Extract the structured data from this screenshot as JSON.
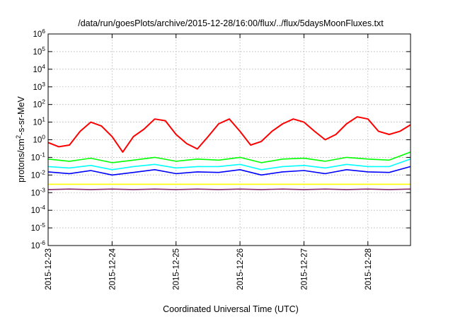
{
  "chart_data": {
    "type": "line",
    "title": "/data/run/goesPlots/archive/2015-12-28/16:00/flux/../flux/5daysMoonFluxes.txt",
    "xlabel": "Coordinated Universal Time (UTC)",
    "ylabel": {
      "pre": "protons/cm",
      "sup": "2",
      "post": "-s-sr-MeV"
    },
    "y_scale": "log",
    "ylim": [
      1e-06,
      1000000.0
    ],
    "y_ticks": [
      {
        "value": 1000000.0,
        "base": "10",
        "exp": "6"
      },
      {
        "value": 100000.0,
        "base": "10",
        "exp": "5"
      },
      {
        "value": 10000.0,
        "base": "10",
        "exp": "4"
      },
      {
        "value": 1000.0,
        "base": "10",
        "exp": "3"
      },
      {
        "value": 100.0,
        "base": "10",
        "exp": "2"
      },
      {
        "value": 10.0,
        "base": "10",
        "exp": "1"
      },
      {
        "value": 1.0,
        "base": "10",
        "exp": "0"
      },
      {
        "value": 0.1,
        "base": "10",
        "exp": "-1"
      },
      {
        "value": 0.01,
        "base": "10",
        "exp": "-2"
      },
      {
        "value": 0.001,
        "base": "10",
        "exp": "-3"
      },
      {
        "value": 0.0001,
        "base": "10",
        "exp": "-4"
      },
      {
        "value": 1e-05,
        "base": "10",
        "exp": "-5"
      },
      {
        "value": 1e-06,
        "base": "10",
        "exp": "-6"
      }
    ],
    "xlim": [
      "2015-12-23T00:00",
      "2015-12-28T16:00"
    ],
    "x_ticks": [
      "2015-12-23",
      "2015-12-24",
      "2015-12-25",
      "2015-12-26",
      "2015-12-27",
      "2015-12-28"
    ],
    "grid": true,
    "series": [
      {
        "color": "#ff0000",
        "x": [
          "2015-12-23T00:00",
          "2015-12-23T04:00",
          "2015-12-23T08:00",
          "2015-12-23T12:00",
          "2015-12-23T16:00",
          "2015-12-23T20:00",
          "2015-12-24T00:00",
          "2015-12-24T04:00",
          "2015-12-24T08:00",
          "2015-12-24T12:00",
          "2015-12-24T16:00",
          "2015-12-24T20:00",
          "2015-12-25T00:00",
          "2015-12-25T04:00",
          "2015-12-25T08:00",
          "2015-12-25T12:00",
          "2015-12-25T16:00",
          "2015-12-25T20:00",
          "2015-12-26T00:00",
          "2015-12-26T04:00",
          "2015-12-26T08:00",
          "2015-12-26T12:00",
          "2015-12-26T16:00",
          "2015-12-26T20:00",
          "2015-12-27T00:00",
          "2015-12-27T04:00",
          "2015-12-27T08:00",
          "2015-12-27T12:00",
          "2015-12-27T16:00",
          "2015-12-27T20:00",
          "2015-12-28T00:00",
          "2015-12-28T04:00",
          "2015-12-28T08:00",
          "2015-12-28T12:00",
          "2015-12-28T16:00"
        ],
        "values": [
          0.7,
          0.4,
          0.5,
          3,
          10,
          6,
          1.5,
          0.2,
          1.5,
          4,
          15,
          12,
          2,
          0.6,
          0.3,
          1.5,
          8,
          15,
          3,
          0.5,
          0.8,
          3,
          8,
          15,
          10,
          3,
          1,
          2,
          8,
          20,
          15,
          3,
          2,
          3,
          7
        ]
      },
      {
        "color": "#00ff00",
        "x": [
          "2015-12-23T00:00",
          "2015-12-23T08:00",
          "2015-12-23T16:00",
          "2015-12-24T00:00",
          "2015-12-24T08:00",
          "2015-12-24T16:00",
          "2015-12-25T00:00",
          "2015-12-25T08:00",
          "2015-12-25T16:00",
          "2015-12-26T00:00",
          "2015-12-26T08:00",
          "2015-12-26T16:00",
          "2015-12-27T00:00",
          "2015-12-27T08:00",
          "2015-12-27T16:00",
          "2015-12-28T00:00",
          "2015-12-28T08:00",
          "2015-12-28T16:00"
        ],
        "values": [
          0.08,
          0.06,
          0.09,
          0.05,
          0.07,
          0.1,
          0.06,
          0.08,
          0.07,
          0.1,
          0.05,
          0.08,
          0.09,
          0.06,
          0.1,
          0.08,
          0.07,
          0.2
        ]
      },
      {
        "color": "#00ffff",
        "x": [
          "2015-12-23T00:00",
          "2015-12-23T08:00",
          "2015-12-23T16:00",
          "2015-12-24T00:00",
          "2015-12-24T08:00",
          "2015-12-24T16:00",
          "2015-12-25T00:00",
          "2015-12-25T08:00",
          "2015-12-25T16:00",
          "2015-12-26T00:00",
          "2015-12-26T08:00",
          "2015-12-26T16:00",
          "2015-12-27T00:00",
          "2015-12-27T08:00",
          "2015-12-27T16:00",
          "2015-12-28T00:00",
          "2015-12-28T08:00",
          "2015-12-28T16:00"
        ],
        "values": [
          0.03,
          0.025,
          0.035,
          0.02,
          0.03,
          0.04,
          0.025,
          0.03,
          0.03,
          0.04,
          0.02,
          0.03,
          0.035,
          0.025,
          0.04,
          0.03,
          0.03,
          0.08
        ]
      },
      {
        "color": "#0000ff",
        "x": [
          "2015-12-23T00:00",
          "2015-12-23T08:00",
          "2015-12-23T16:00",
          "2015-12-24T00:00",
          "2015-12-24T08:00",
          "2015-12-24T16:00",
          "2015-12-25T00:00",
          "2015-12-25T08:00",
          "2015-12-25T16:00",
          "2015-12-26T00:00",
          "2015-12-26T08:00",
          "2015-12-26T16:00",
          "2015-12-27T00:00",
          "2015-12-27T08:00",
          "2015-12-27T16:00",
          "2015-12-28T00:00",
          "2015-12-28T08:00",
          "2015-12-28T16:00"
        ],
        "values": [
          0.015,
          0.012,
          0.018,
          0.01,
          0.014,
          0.02,
          0.012,
          0.015,
          0.014,
          0.02,
          0.01,
          0.015,
          0.018,
          0.012,
          0.02,
          0.015,
          0.014,
          0.03
        ]
      },
      {
        "color": "#ffff00",
        "x": [
          "2015-12-23T00:00",
          "2015-12-24T00:00",
          "2015-12-25T00:00",
          "2015-12-26T00:00",
          "2015-12-27T00:00",
          "2015-12-28T00:00",
          "2015-12-28T16:00"
        ],
        "values": [
          0.003,
          0.003,
          0.003,
          0.003,
          0.003,
          0.003,
          0.003
        ]
      },
      {
        "color": "#8b2a6b",
        "x": [
          "2015-12-23T00:00",
          "2015-12-23T08:00",
          "2015-12-23T16:00",
          "2015-12-24T00:00",
          "2015-12-24T08:00",
          "2015-12-24T16:00",
          "2015-12-25T00:00",
          "2015-12-25T08:00",
          "2015-12-25T16:00",
          "2015-12-26T00:00",
          "2015-12-26T08:00",
          "2015-12-26T16:00",
          "2015-12-27T00:00",
          "2015-12-27T08:00",
          "2015-12-27T16:00",
          "2015-12-28T00:00",
          "2015-12-28T08:00",
          "2015-12-28T16:00"
        ],
        "values": [
          0.0015,
          0.0016,
          0.0015,
          0.0016,
          0.0015,
          0.0016,
          0.0015,
          0.0016,
          0.0015,
          0.0016,
          0.0015,
          0.0016,
          0.0015,
          0.0016,
          0.0015,
          0.0016,
          0.0015,
          0.0016
        ]
      }
    ]
  }
}
